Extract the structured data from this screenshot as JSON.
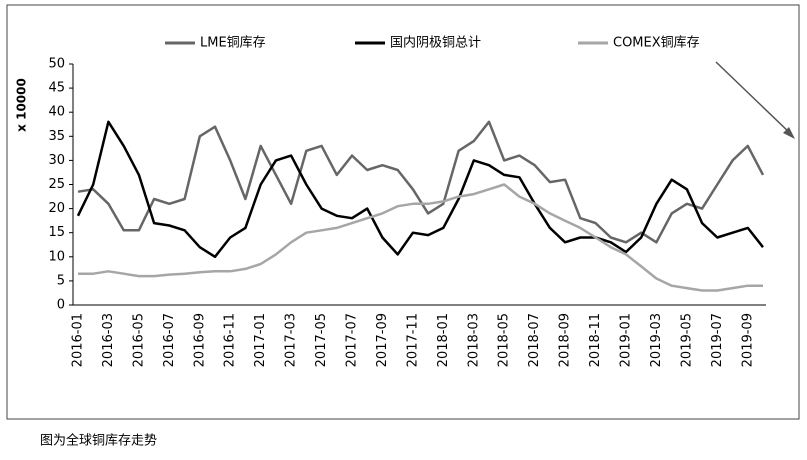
{
  "chart_data": {
    "type": "line",
    "y_label": "x 10000",
    "caption": "图为全球铜库存走势",
    "legend": "top",
    "categories": [
      "2016-01",
      null,
      "2016-03",
      null,
      "2016-05",
      null,
      "2016-07",
      null,
      "2016-09",
      null,
      "2016-11",
      null,
      "2017-01",
      null,
      "2017-03",
      null,
      "2017-05",
      null,
      "2017-07",
      null,
      "2017-09",
      null,
      "2017-11",
      null,
      "2018-01",
      null,
      "2018-03",
      null,
      "2018-05",
      null,
      "2018-07",
      null,
      "2018-09",
      null,
      "2018-11",
      null,
      "2019-01",
      null,
      "2019-03",
      null,
      "2019-05",
      null,
      "2019-07",
      null,
      "2019-09",
      null
    ],
    "series": [
      {
        "name": "LME铜库存",
        "color": "#666666",
        "values": [
          23.5,
          24,
          21,
          15.5,
          15.5,
          22,
          21,
          22,
          35,
          37,
          30,
          22,
          33,
          27,
          21,
          32,
          33,
          27,
          31,
          28,
          29,
          28,
          24,
          19,
          21,
          32,
          34,
          38,
          30,
          31,
          29,
          25.5,
          26,
          18,
          17,
          14,
          13,
          15,
          13,
          19,
          21,
          20,
          25,
          30,
          33,
          27
        ]
      },
      {
        "name": "国内阴极铜总计",
        "color": "#000000",
        "values": [
          18.5,
          25,
          38,
          33,
          27,
          17,
          16.5,
          15.5,
          12,
          10,
          14,
          16,
          25,
          30,
          31,
          25,
          20,
          18.5,
          18,
          20,
          14,
          10.5,
          15,
          14.5,
          16,
          22,
          30,
          29,
          27,
          26.5,
          21,
          16,
          13,
          14,
          14,
          13,
          11,
          14,
          21,
          26,
          24,
          17,
          14,
          15,
          16,
          12
        ]
      },
      {
        "name": "COMEX铜库存",
        "color": "#a6a6a6",
        "values": [
          6.5,
          6.5,
          7,
          6.5,
          6,
          6,
          6.3,
          6.5,
          6.8,
          7,
          7,
          7.5,
          8.5,
          10.5,
          13,
          15,
          15.5,
          16,
          17,
          18,
          19,
          20.5,
          21,
          21,
          21.5,
          22.5,
          23,
          24,
          25,
          22.5,
          21,
          19,
          17.5,
          16,
          14,
          12,
          10.5,
          8,
          5.5,
          4,
          3.5,
          3,
          3,
          3.5,
          4,
          4
        ]
      }
    ],
    "ylim": [
      0,
      50
    ],
    "yticks": [
      0,
      5,
      10,
      15,
      20,
      25,
      30,
      35,
      40,
      45,
      50
    ]
  }
}
